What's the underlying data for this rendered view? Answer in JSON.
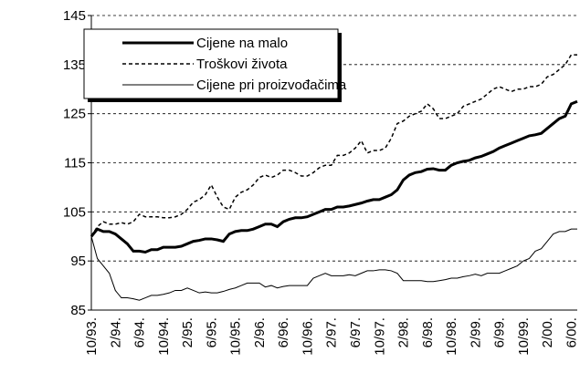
{
  "chart_data": {
    "type": "line",
    "categories": [
      "10/93.",
      null,
      null,
      null,
      "2/94.",
      null,
      null,
      null,
      "6/94.",
      null,
      null,
      null,
      "10/94.",
      null,
      null,
      null,
      "2/95.",
      null,
      null,
      null,
      "6/95.",
      null,
      null,
      null,
      "10/95.",
      null,
      null,
      null,
      "2/96.",
      null,
      null,
      null,
      "6/96.",
      null,
      null,
      null,
      "10/96.",
      null,
      null,
      null,
      "2/97.",
      null,
      null,
      null,
      "6/97.",
      null,
      null,
      null,
      "10/97.",
      null,
      null,
      null,
      "2/98.",
      null,
      null,
      null,
      "6/98.",
      null,
      null,
      null,
      "10/98.",
      null,
      null,
      null,
      "2/99.",
      null,
      null,
      null,
      "6/99.",
      null,
      null,
      null,
      "10/99.",
      null,
      null,
      null,
      "2/00.",
      null,
      null,
      null,
      "6/00.",
      null
    ],
    "series": [
      {
        "name": "Cijene na malo",
        "color": "#000000",
        "width": 3,
        "dash": "solid",
        "values": [
          100,
          101.5,
          101,
          101,
          100.5,
          99.5,
          98.5,
          97,
          97,
          96.8,
          97.3,
          97.3,
          97.8,
          97.8,
          97.8,
          98,
          98.5,
          99,
          99.2,
          99.5,
          99.5,
          99.3,
          99,
          100.5,
          101,
          101.2,
          101.2,
          101.5,
          102,
          102.5,
          102.5,
          102,
          103,
          103.5,
          103.8,
          103.8,
          104,
          104.5,
          105,
          105.5,
          105.5,
          106,
          106,
          106.2,
          106.5,
          106.8,
          107.2,
          107.5,
          107.5,
          108,
          108.5,
          109.5,
          111.5,
          112.5,
          113,
          113.2,
          113.7,
          113.8,
          113.5,
          113.5,
          114.5,
          115,
          115.3,
          115.5,
          116,
          116.3,
          116.8,
          117.3,
          118,
          118.5,
          119,
          119.5,
          120,
          120.5,
          120.7,
          121,
          122,
          123,
          124,
          124.5,
          127,
          127.5
        ]
      },
      {
        "name": "Troškovi života",
        "color": "#000000",
        "width": 1.5,
        "dash": "dotted",
        "values": [
          100,
          102,
          103,
          102.5,
          102.5,
          102.8,
          102.5,
          103,
          104.5,
          104,
          104,
          104,
          103.8,
          103.8,
          104,
          104.5,
          105.5,
          107,
          107.5,
          108.5,
          110.5,
          108,
          106,
          105.5,
          108,
          109,
          109.5,
          110.5,
          112,
          112.5,
          112,
          112.5,
          113.5,
          113.5,
          113,
          112.3,
          112.3,
          113,
          114,
          114.5,
          114.5,
          116.5,
          116.5,
          117,
          118,
          119.5,
          117,
          117.5,
          117.5,
          118,
          120,
          123,
          123.5,
          124.5,
          125,
          125.5,
          127,
          126,
          124,
          124,
          124.5,
          125,
          126.5,
          127,
          127.5,
          128,
          129,
          130,
          130.5,
          130,
          129.5,
          130,
          130,
          130.5,
          130.5,
          131,
          132.5,
          133,
          134,
          135,
          137,
          137
        ]
      },
      {
        "name": "Cijene pri proizvođačima",
        "color": "#000000",
        "width": 1,
        "dash": "solid",
        "values": [
          100,
          95.5,
          94,
          92.5,
          89,
          87.5,
          87.5,
          87.3,
          87,
          87.5,
          88,
          88,
          88.2,
          88.5,
          89,
          89,
          89.5,
          89,
          88.5,
          88.7,
          88.5,
          88.5,
          88.8,
          89.2,
          89.5,
          90,
          90.5,
          90.5,
          90.5,
          89.7,
          90,
          89.5,
          89.8,
          90,
          90,
          90,
          90,
          91.5,
          92,
          92.5,
          92,
          92,
          92,
          92.2,
          92,
          92.5,
          93,
          93,
          93.2,
          93.2,
          93,
          92.5,
          91,
          91,
          91,
          91,
          90.8,
          90.8,
          91,
          91.2,
          91.5,
          91.5,
          91.8,
          92,
          92.3,
          92,
          92.5,
          92.5,
          92.5,
          93,
          93.5,
          94,
          95,
          95.5,
          97,
          97.5,
          99,
          100.5,
          101,
          101,
          101.5,
          101.5
        ]
      }
    ],
    "ylim": [
      85,
      145
    ],
    "yticks": [
      85,
      95,
      105,
      115,
      125,
      135,
      145
    ],
    "grid": true
  }
}
